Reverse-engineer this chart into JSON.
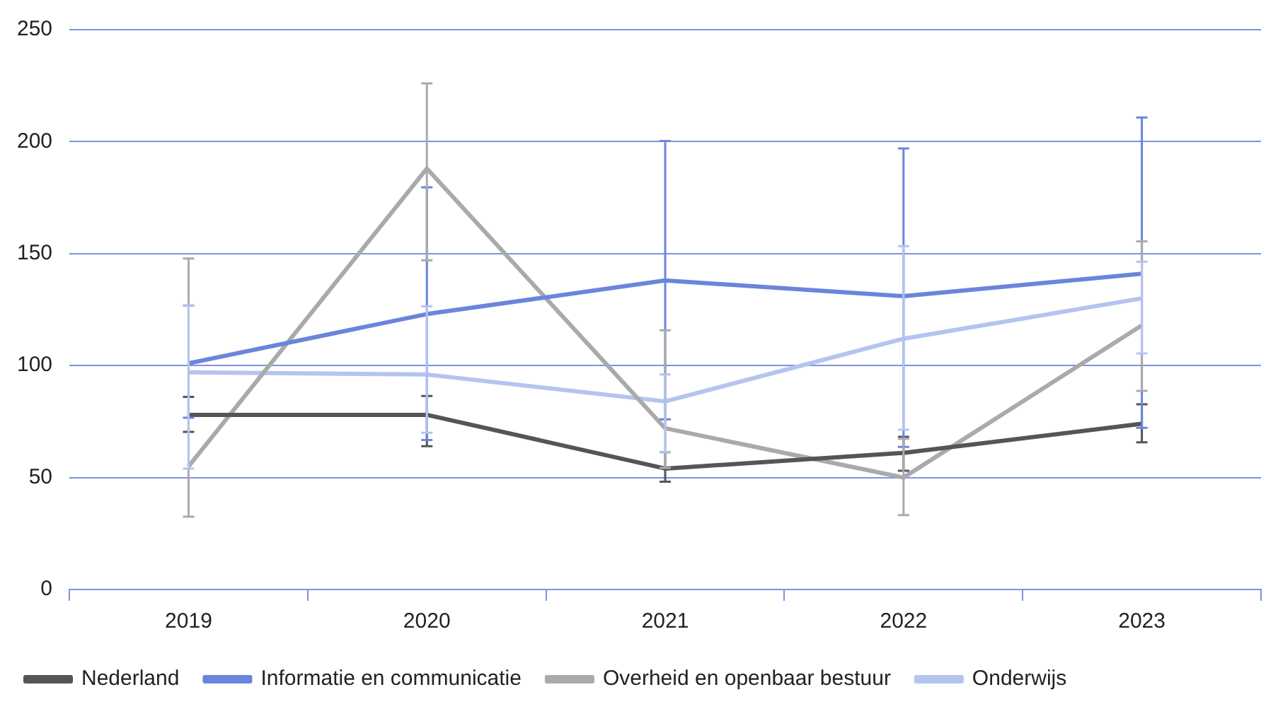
{
  "chart_data": {
    "type": "line",
    "categories": [
      "2019",
      "2020",
      "2021",
      "2022",
      "2023"
    ],
    "series": [
      {
        "name": "Nederland",
        "color": "#555555",
        "values": [
          78,
          78,
          54,
          61,
          74
        ],
        "errors": [
          [
            70.4,
            86
          ],
          [
            64,
            86.4
          ],
          [
            48.1,
            61.3
          ],
          [
            53,
            68.2
          ],
          [
            65.7,
            82.7
          ]
        ]
      },
      {
        "name": "Informatie en communicatie",
        "color": "#6b85dc",
        "values": [
          101,
          123,
          138,
          131,
          141
        ],
        "errors": [
          [
            76.7,
            126.8
          ],
          [
            66.8,
            179.6
          ],
          [
            76,
            200.3
          ],
          [
            63.7,
            197
          ],
          [
            72.2,
            210.8
          ]
        ]
      },
      {
        "name": "Overheid en openbaar bestuur",
        "color": "#aaaaaa",
        "values": [
          55,
          188,
          72,
          50,
          118
        ],
        "errors": [
          [
            32.5,
            147.8
          ],
          [
            147,
            226
          ],
          [
            54.3,
            115.8
          ],
          [
            33.2,
            67.3
          ],
          [
            88.7,
            155.5
          ]
        ]
      },
      {
        "name": "Onderwijs",
        "color": "#b4c4f0",
        "values": [
          97,
          96,
          84,
          112,
          130
        ],
        "errors": [
          [
            54,
            126.8
          ],
          [
            70,
            126.5
          ],
          [
            61.3,
            96
          ],
          [
            71.3,
            153.3
          ],
          [
            105.4,
            146.4
          ]
        ]
      }
    ],
    "ylim": [
      0,
      250
    ],
    "yticks": [
      0,
      50,
      100,
      150,
      200,
      250
    ],
    "grid": "y",
    "legend": "bottom",
    "marker": "none",
    "line_style": "solid"
  }
}
